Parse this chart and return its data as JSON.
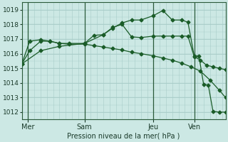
{
  "bg_color": "#cce8e4",
  "grid_color": "#a8ccc8",
  "line_color": "#1a5c28",
  "xlabel": "Pression niveau de la mer( hPa )",
  "ylim": [
    1011.5,
    1019.5
  ],
  "yticks": [
    1012,
    1013,
    1014,
    1015,
    1016,
    1017,
    1018,
    1019
  ],
  "day_labels": [
    "Mer",
    "Sam",
    "Jeu",
    "Ven"
  ],
  "day_positions": [
    4,
    40,
    84,
    110
  ],
  "vlines": [
    4,
    40,
    84,
    110
  ],
  "xlim": [
    0,
    130
  ],
  "series1_x": [
    0,
    5,
    12,
    18,
    24,
    30,
    40,
    46,
    52,
    58,
    64,
    70,
    76,
    84,
    90,
    96,
    102,
    108,
    114,
    120,
    126,
    130
  ],
  "series1_y": [
    1015.3,
    1016.2,
    1016.85,
    1016.85,
    1016.7,
    1016.65,
    1016.65,
    1016.55,
    1016.45,
    1016.35,
    1016.25,
    1016.1,
    1016.0,
    1015.85,
    1015.7,
    1015.55,
    1015.35,
    1015.1,
    1014.8,
    1014.2,
    1013.5,
    1013.0
  ],
  "series2_x": [
    0,
    5,
    12,
    18,
    24,
    30,
    40,
    46,
    52,
    58,
    64,
    70,
    76,
    84,
    90,
    96,
    102,
    106,
    110,
    114,
    118,
    122,
    126,
    130
  ],
  "series2_y": [
    1015.3,
    1016.85,
    1016.95,
    1016.85,
    1016.7,
    1016.7,
    1016.7,
    1017.25,
    1017.3,
    1017.8,
    1018.0,
    1017.15,
    1017.1,
    1017.2,
    1017.2,
    1017.2,
    1017.2,
    1017.2,
    1015.8,
    1015.55,
    1015.2,
    1015.1,
    1015.0,
    1014.9
  ],
  "series3_x": [
    0,
    12,
    24,
    40,
    52,
    58,
    64,
    70,
    76,
    84,
    90,
    96,
    102,
    106,
    110,
    113,
    116,
    119,
    122,
    126,
    130
  ],
  "series3_y": [
    1015.3,
    1016.2,
    1016.5,
    1016.7,
    1017.3,
    1017.75,
    1018.1,
    1018.3,
    1018.3,
    1018.6,
    1018.95,
    1018.3,
    1018.3,
    1018.15,
    1015.85,
    1015.85,
    1013.9,
    1013.85,
    1012.05,
    1012.0,
    1012.0
  ],
  "marker": "D",
  "markersize": 2.5,
  "linewidth": 0.9
}
